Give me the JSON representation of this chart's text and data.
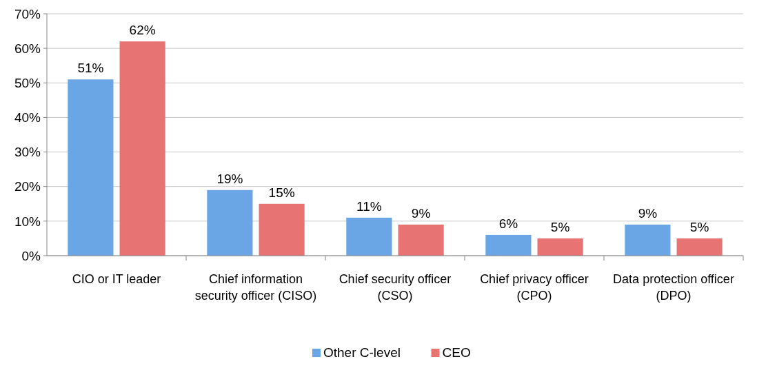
{
  "chart_data": {
    "type": "bar",
    "categories": [
      "CIO or IT leader",
      "Chief information security officer (CISO)",
      "Chief security officer (CSO)",
      "Chief privacy officer (CPO)",
      "Data protection officer (DPO)"
    ],
    "series": [
      {
        "name": "Other C-level",
        "color": "#6aa6e6",
        "values": [
          51,
          19,
          11,
          6,
          9
        ],
        "value_labels": [
          "51%",
          "19%",
          "11%",
          "6%",
          "9%"
        ]
      },
      {
        "name": "CEO",
        "color": "#e77373",
        "values": [
          62,
          15,
          9,
          5,
          5
        ],
        "value_labels": [
          "62%",
          "15%",
          "9%",
          "5%",
          "5%"
        ]
      }
    ],
    "ylim": [
      0,
      70
    ],
    "yticks": [
      {
        "value": 0,
        "label": "0%"
      },
      {
        "value": 10,
        "label": "10%"
      },
      {
        "value": 20,
        "label": "20%"
      },
      {
        "value": 30,
        "label": "30%"
      },
      {
        "value": 40,
        "label": "40%"
      },
      {
        "value": 50,
        "label": "50%"
      },
      {
        "value": 60,
        "label": "60%"
      },
      {
        "value": 70,
        "label": "70%"
      }
    ],
    "grid": "y",
    "legend": "bottom"
  }
}
